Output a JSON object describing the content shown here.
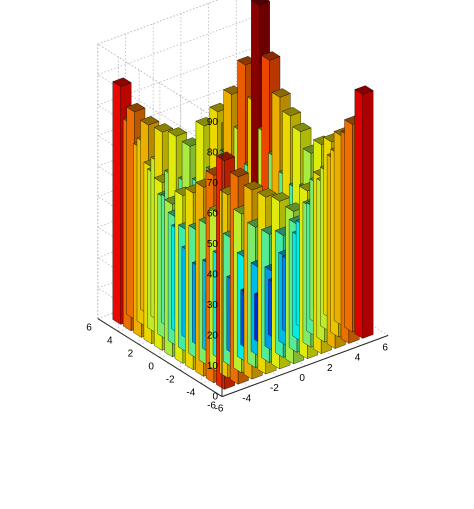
{
  "chart_data": {
    "type": "bar3d",
    "title": "",
    "xlabel": "",
    "ylabel": "",
    "zlabel": "",
    "xlim": [
      -6,
      6
    ],
    "ylim": [
      -6,
      6
    ],
    "zlim": [
      0,
      90
    ],
    "grid": true,
    "x_ticks": [
      -6,
      -4,
      -2,
      0,
      2,
      4,
      6
    ],
    "x_tick_labels": [
      "-6",
      "-4",
      "-2",
      "0",
      "2",
      "4",
      "6"
    ],
    "y_ticks": [
      -6,
      -4,
      -2,
      0,
      2,
      4,
      6
    ],
    "y_tick_labels": [
      "-6",
      "-4",
      "-2",
      "0",
      "2",
      "4",
      "6"
    ],
    "z_ticks": [
      0,
      10,
      20,
      30,
      40,
      50,
      60,
      70,
      80,
      90
    ],
    "z_tick_labels": [
      "0",
      "10",
      "20",
      "30",
      "40",
      "50",
      "60",
      "70",
      "80",
      "90"
    ],
    "x": [
      -5,
      -4,
      -3,
      -2,
      -1,
      0,
      1,
      2,
      3,
      4,
      5
    ],
    "y": [
      -5,
      -4,
      -3,
      -2,
      -1,
      0,
      1,
      2,
      3,
      4,
      5
    ],
    "z": [
      [
        75,
        68,
        62,
        58,
        55,
        50,
        55,
        58,
        62,
        68,
        80
      ],
      [
        68,
        60,
        52,
        46,
        42,
        40,
        42,
        46,
        52,
        60,
        68
      ],
      [
        62,
        52,
        42,
        34,
        29,
        26,
        29,
        34,
        42,
        52,
        62
      ],
      [
        58,
        46,
        34,
        24,
        18,
        15,
        18,
        24,
        34,
        46,
        58
      ],
      [
        55,
        42,
        29,
        18,
        10,
        6,
        10,
        18,
        29,
        42,
        55
      ],
      [
        50,
        40,
        26,
        15,
        6,
        2,
        6,
        15,
        26,
        40,
        50
      ],
      [
        55,
        42,
        29,
        18,
        10,
        6,
        10,
        18,
        29,
        42,
        55
      ],
      [
        58,
        46,
        34,
        24,
        18,
        15,
        18,
        24,
        34,
        46,
        58
      ],
      [
        62,
        52,
        42,
        34,
        29,
        26,
        29,
        34,
        42,
        52,
        62
      ],
      [
        68,
        60,
        52,
        46,
        42,
        40,
        42,
        46,
        52,
        60,
        72
      ],
      [
        78,
        68,
        62,
        58,
        55,
        50,
        55,
        58,
        62,
        70,
        88
      ]
    ],
    "colormap": "jet",
    "edge_color": "#000000"
  }
}
